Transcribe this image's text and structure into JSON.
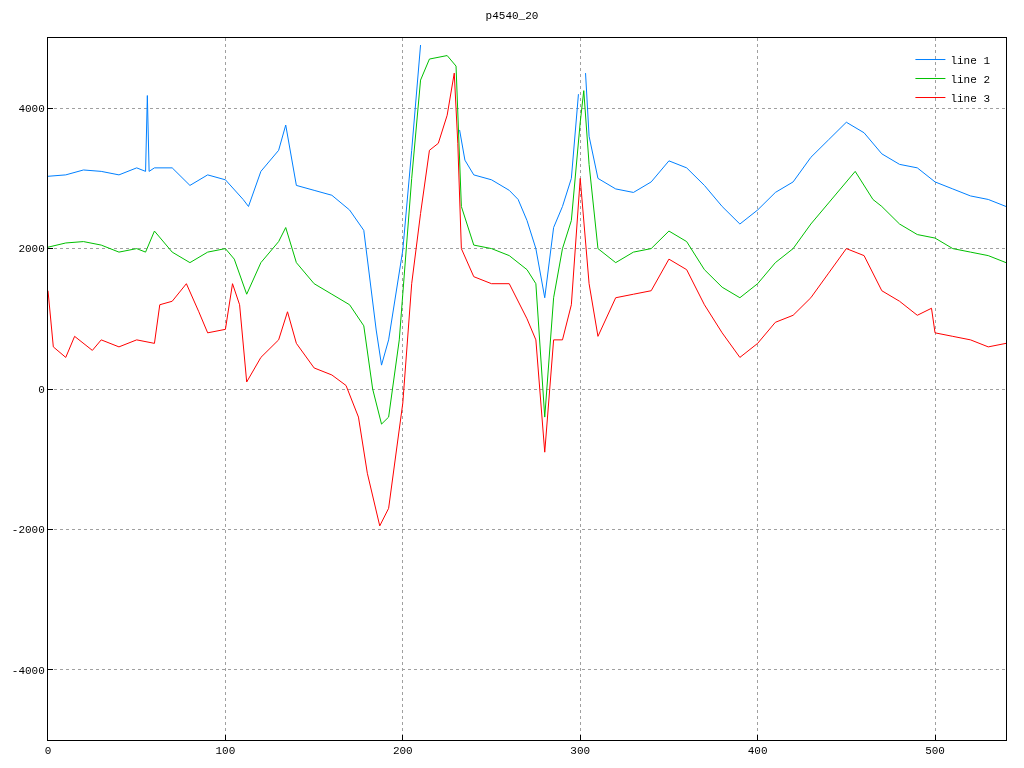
{
  "chart_data": {
    "type": "line",
    "title": "p4540_20",
    "xlim": [
      0,
      540
    ],
    "ylim": [
      -5000,
      5000
    ],
    "xticks": [
      0,
      100,
      200,
      300,
      400,
      500
    ],
    "yticks": [
      -4000,
      -2000,
      0,
      2000,
      4000
    ],
    "grid": true,
    "legend": "top right",
    "marker": "none",
    "line_style": "solid",
    "series": [
      {
        "name": "line 1",
        "color": "#0080ff",
        "x": [
          0,
          10,
          20,
          30,
          40,
          50,
          55,
          56,
          57,
          60,
          70,
          80,
          90,
          100,
          110,
          113,
          120,
          130,
          134,
          140,
          150,
          160,
          170,
          178,
          185,
          188,
          192,
          200,
          205,
          210,
          215,
          225,
          232,
          235,
          240,
          250,
          260,
          265,
          270,
          275,
          280,
          285,
          290,
          295,
          299,
          301,
          303,
          305,
          310,
          320,
          330,
          340,
          350,
          360,
          370,
          380,
          390,
          400,
          410,
          420,
          430,
          440,
          450,
          460,
          470,
          480,
          490,
          500,
          510,
          520,
          530,
          540
        ],
        "values": [
          3030,
          3050,
          3120,
          3100,
          3050,
          3150,
          3100,
          4180,
          3100,
          3150,
          3150,
          2900,
          3050,
          2980,
          2700,
          2600,
          3100,
          3400,
          3760,
          2900,
          2830,
          2760,
          2550,
          2260,
          840,
          340,
          700,
          1980,
          3400,
          4900,
          null,
          null,
          3690,
          3260,
          3050,
          2980,
          2830,
          2700,
          2400,
          2000,
          1300,
          2300,
          2600,
          3000,
          4200,
          null,
          4500,
          3600,
          3000,
          2850,
          2800,
          2950,
          3250,
          3150,
          2900,
          2600,
          2350,
          2550,
          2800,
          2950,
          3300,
          3550,
          3800,
          3650,
          3350,
          3200,
          3150,
          2950,
          2850,
          2750,
          2700,
          2600
        ]
      },
      {
        "name": "line 2",
        "color": "#00c000",
        "x": [
          0,
          10,
          20,
          30,
          40,
          50,
          55,
          60,
          70,
          80,
          90,
          100,
          105,
          112,
          120,
          130,
          134,
          140,
          150,
          160,
          170,
          178,
          183,
          188,
          192,
          198,
          205,
          210,
          215,
          225,
          230,
          233,
          240,
          250,
          260,
          270,
          275,
          280,
          285,
          290,
          295,
          300,
          302,
          305,
          310,
          320,
          330,
          340,
          350,
          360,
          370,
          380,
          390,
          400,
          410,
          420,
          430,
          440,
          455,
          465,
          470,
          480,
          490,
          500,
          510,
          520,
          530,
          540
        ],
        "values": [
          2020,
          2080,
          2100,
          2050,
          1950,
          2000,
          1950,
          2250,
          1950,
          1800,
          1950,
          2000,
          1850,
          1350,
          1800,
          2100,
          2300,
          1800,
          1500,
          1350,
          1200,
          900,
          0,
          -500,
          -400,
          700,
          3000,
          4400,
          4700,
          4750,
          4600,
          2600,
          2050,
          2000,
          1900,
          1700,
          1500,
          -400,
          1300,
          2000,
          2400,
          3800,
          4250,
          3200,
          2000,
          1800,
          1950,
          2000,
          2250,
          2100,
          1700,
          1450,
          1300,
          1500,
          1800,
          2000,
          2350,
          2650,
          3100,
          2700,
          2600,
          2350,
          2200,
          2150,
          2000,
          1950,
          1900,
          1800
        ]
      },
      {
        "name": "line 3",
        "color": "#ff0000",
        "x": [
          0,
          3,
          10,
          15,
          25,
          30,
          40,
          50,
          60,
          63,
          70,
          78,
          85,
          90,
          100,
          104,
          108,
          112,
          120,
          130,
          135,
          140,
          150,
          160,
          168,
          175,
          180,
          187,
          192,
          200,
          205,
          210,
          215,
          220,
          225,
          229,
          231,
          233,
          240,
          250,
          260,
          270,
          275,
          280,
          285,
          290,
          295,
          300,
          305,
          310,
          320,
          330,
          340,
          350,
          360,
          370,
          380,
          390,
          400,
          410,
          420,
          430,
          440,
          450,
          460,
          470,
          480,
          490,
          498,
          500,
          510,
          520,
          530,
          540
        ],
        "values": [
          1400,
          600,
          450,
          750,
          550,
          700,
          600,
          700,
          650,
          1200,
          1250,
          1500,
          1100,
          800,
          850,
          1500,
          1200,
          100,
          450,
          700,
          1100,
          650,
          300,
          200,
          50,
          -400,
          -1200,
          -1950,
          -1700,
          -200,
          1500,
          2500,
          3400,
          3500,
          3900,
          4500,
          3500,
          2000,
          1600,
          1500,
          1500,
          1000,
          700,
          -900,
          700,
          700,
          1200,
          3000,
          1500,
          750,
          1300,
          1350,
          1400,
          1850,
          1700,
          1200,
          800,
          450,
          650,
          950,
          1050,
          1300,
          1650,
          2000,
          1900,
          1400,
          1250,
          1050,
          1150,
          800,
          750,
          700,
          600,
          650
        ]
      }
    ]
  }
}
